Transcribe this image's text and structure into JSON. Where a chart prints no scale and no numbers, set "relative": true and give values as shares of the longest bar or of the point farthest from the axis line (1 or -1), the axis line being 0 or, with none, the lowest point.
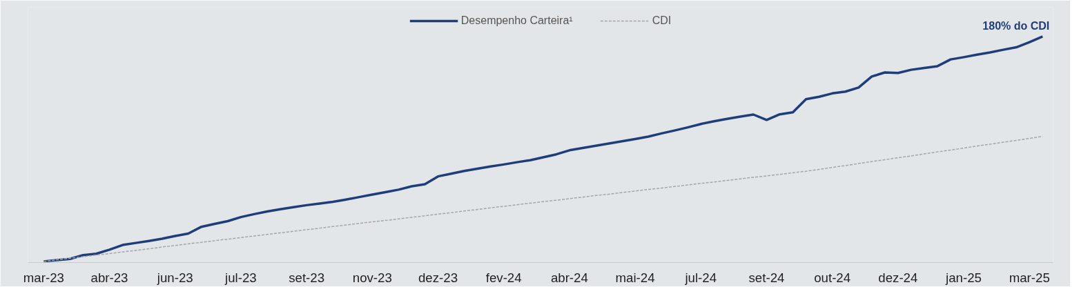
{
  "chart_data": {
    "type": "line",
    "relative": true,
    "legend": "top",
    "marker": "none",
    "categories": [
      "mar-23",
      null,
      null,
      null,
      null,
      "abr-23",
      null,
      null,
      null,
      null,
      "jun-23",
      null,
      null,
      null,
      null,
      "jul-23",
      null,
      null,
      null,
      null,
      "set-23",
      null,
      null,
      null,
      null,
      "nov-23",
      null,
      null,
      null,
      null,
      "dez-23",
      null,
      null,
      null,
      null,
      "fev-24",
      null,
      null,
      null,
      null,
      "abr-24",
      null,
      null,
      null,
      null,
      "mai-24",
      null,
      null,
      null,
      null,
      "jul-24",
      null,
      null,
      null,
      null,
      "set-24",
      null,
      null,
      null,
      null,
      "out-24",
      null,
      null,
      null,
      null,
      "dez-24",
      null,
      null,
      null,
      null,
      "jan-25",
      null,
      null,
      null,
      null,
      "mar-25",
      null
    ],
    "series": [
      {
        "name": "Desempenho Carteira¹",
        "color": "#1f3d7a",
        "line_style": "solid",
        "values": [
          0,
          0.006,
          0.011,
          0.028,
          0.034,
          0.052,
          0.073,
          0.082,
          0.091,
          0.101,
          0.113,
          0.124,
          0.154,
          0.167,
          0.179,
          0.197,
          0.21,
          0.222,
          0.232,
          0.241,
          0.25,
          0.257,
          0.265,
          0.275,
          0.286,
          0.297,
          0.308,
          0.319,
          0.334,
          0.343,
          0.378,
          0.39,
          0.402,
          0.412,
          0.422,
          0.431,
          0.441,
          0.45,
          0.463,
          0.476,
          0.494,
          0.504,
          0.514,
          0.524,
          0.534,
          0.544,
          0.555,
          0.569,
          0.582,
          0.596,
          0.611,
          0.623,
          0.634,
          0.644,
          0.653,
          0.629,
          0.654,
          0.663,
          0.721,
          0.732,
          0.747,
          0.755,
          0.773,
          0.822,
          0.84,
          0.838,
          0.852,
          0.86,
          0.868,
          0.898,
          0.908,
          0.919,
          0.929,
          0.941,
          0.952,
          0.975,
          1
        ]
      },
      {
        "name": "CDI",
        "color": "#a6a6a6",
        "line_style": "dashed",
        "values": [
          0,
          0.007,
          0.014,
          0.021,
          0.028,
          0.035,
          0.042,
          0.049,
          0.056,
          0.064,
          0.071,
          0.078,
          0.085,
          0.092,
          0.099,
          0.106,
          0.113,
          0.12,
          0.127,
          0.134,
          0.141,
          0.148,
          0.155,
          0.162,
          0.169,
          0.176,
          0.182,
          0.189,
          0.196,
          0.203,
          0.21,
          0.217,
          0.224,
          0.231,
          0.238,
          0.245,
          0.252,
          0.259,
          0.266,
          0.272,
          0.279,
          0.286,
          0.293,
          0.299,
          0.306,
          0.313,
          0.32,
          0.326,
          0.333,
          0.34,
          0.347,
          0.353,
          0.36,
          0.367,
          0.374,
          0.38,
          0.387,
          0.394,
          0.401,
          0.409,
          0.418,
          0.426,
          0.435,
          0.444,
          0.452,
          0.461,
          0.469,
          0.478,
          0.487,
          0.495,
          0.504,
          0.513,
          0.521,
          0.53,
          0.538,
          0.547,
          0.556
        ]
      }
    ],
    "annotations": [
      "180% do CDI"
    ]
  }
}
